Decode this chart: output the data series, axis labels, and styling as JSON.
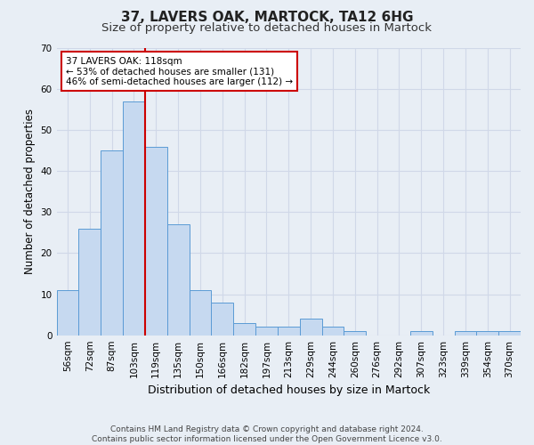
{
  "title": "37, LAVERS OAK, MARTOCK, TA12 6HG",
  "subtitle": "Size of property relative to detached houses in Martock",
  "xlabel": "Distribution of detached houses by size in Martock",
  "ylabel": "Number of detached properties",
  "bar_labels": [
    "56sqm",
    "72sqm",
    "87sqm",
    "103sqm",
    "119sqm",
    "135sqm",
    "150sqm",
    "166sqm",
    "182sqm",
    "197sqm",
    "213sqm",
    "229sqm",
    "244sqm",
    "260sqm",
    "276sqm",
    "292sqm",
    "307sqm",
    "323sqm",
    "339sqm",
    "354sqm",
    "370sqm"
  ],
  "bar_heights": [
    11,
    26,
    45,
    57,
    46,
    27,
    11,
    8,
    3,
    2,
    2,
    4,
    2,
    1,
    0,
    0,
    1,
    0,
    1,
    1,
    1
  ],
  "bar_color": "#c6d9f0",
  "bar_edge_color": "#5b9bd5",
  "grid_color": "#d0d8e8",
  "background_color": "#e8eef5",
  "vline_x_idx": 3.5,
  "vline_color": "#cc0000",
  "annotation_text": "37 LAVERS OAK: 118sqm\n← 53% of detached houses are smaller (131)\n46% of semi-detached houses are larger (112) →",
  "annotation_box_color": "#ffffff",
  "annotation_box_edge": "#cc0000",
  "ylim": [
    0,
    70
  ],
  "yticks": [
    0,
    10,
    20,
    30,
    40,
    50,
    60,
    70
  ],
  "footer": "Contains HM Land Registry data © Crown copyright and database right 2024.\nContains public sector information licensed under the Open Government Licence v3.0.",
  "title_fontsize": 11,
  "subtitle_fontsize": 9.5,
  "xlabel_fontsize": 9,
  "ylabel_fontsize": 8.5,
  "tick_fontsize": 7.5,
  "annotation_fontsize": 7.5,
  "footer_fontsize": 6.5
}
